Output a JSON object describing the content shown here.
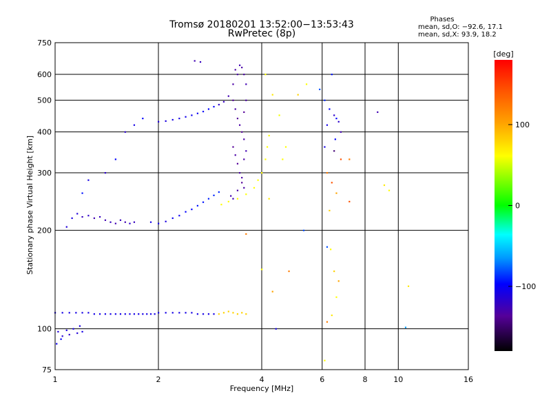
{
  "chart_data": {
    "type": "scatter",
    "title": "Tromsø 20180201 13:52:00−13:53:43",
    "subtitle": "RwPretec (8p)",
    "xlabel": "Frequency [MHz]",
    "ylabel": "Stationary phase Virtual Height [km]",
    "x_scale": "log",
    "y_scale": "log",
    "xlim": [
      1,
      16
    ],
    "ylim": [
      75,
      750
    ],
    "x_ticks": [
      1,
      2,
      4,
      6,
      8,
      10,
      16
    ],
    "x_tick_labels": [
      "1",
      "2",
      "4",
      "6",
      "8",
      "10",
      "16"
    ],
    "y_ticks": [
      75,
      100,
      200,
      300,
      400,
      500,
      600,
      750
    ],
    "y_tick_labels": [
      "75",
      "100",
      "200",
      "300",
      "400",
      "500",
      "600",
      "750"
    ],
    "grid": true,
    "phases_info": {
      "title": "Phases",
      "line_o": "mean, sd,O: −92.6, 17.1",
      "line_x": "mean, sd,X:  93.9, 18.2"
    },
    "colorbar": {
      "label": "[deg]",
      "range": [
        -180,
        180
      ],
      "ticks": [
        100,
        0,
        -100
      ],
      "tick_labels": [
        "100",
        "0",
        "−100"
      ]
    },
    "series": [
      {
        "points": [
          [
            1.0,
            112,
            -110
          ],
          [
            1.05,
            112,
            -110
          ],
          [
            1.1,
            112,
            -110
          ],
          [
            1.15,
            112,
            -110
          ],
          [
            1.2,
            112,
            -110
          ],
          [
            1.25,
            112,
            -110
          ],
          [
            1.3,
            111,
            -110
          ],
          [
            1.35,
            111,
            -110
          ],
          [
            1.4,
            111,
            -110
          ],
          [
            1.45,
            111,
            -110
          ],
          [
            1.5,
            111,
            -110
          ],
          [
            1.55,
            111,
            -110
          ],
          [
            1.6,
            111,
            -110
          ],
          [
            1.65,
            111,
            -110
          ],
          [
            1.7,
            111,
            -110
          ],
          [
            1.75,
            111,
            -110
          ],
          [
            1.8,
            111,
            -110
          ],
          [
            1.85,
            111,
            -110
          ],
          [
            1.9,
            111,
            -110
          ],
          [
            1.95,
            111,
            -110
          ],
          [
            2.0,
            112,
            -110
          ],
          [
            2.1,
            112,
            -110
          ],
          [
            2.2,
            112,
            -110
          ],
          [
            2.3,
            112,
            -110
          ],
          [
            2.4,
            112,
            -110
          ],
          [
            2.5,
            112,
            -110
          ],
          [
            2.6,
            111,
            -110
          ],
          [
            2.7,
            111,
            -110
          ],
          [
            2.8,
            111,
            -110
          ],
          [
            2.9,
            111,
            -110
          ],
          [
            1.02,
            98,
            -115
          ],
          [
            1.05,
            95,
            -118
          ],
          [
            1.08,
            99,
            -112
          ],
          [
            1.1,
            96,
            -120
          ],
          [
            1.13,
            100,
            -110
          ],
          [
            1.16,
            97,
            -115
          ],
          [
            1.18,
            102,
            -112
          ],
          [
            1.2,
            98,
            -110
          ],
          [
            1.01,
            90,
            -105
          ],
          [
            1.04,
            93,
            -100
          ],
          [
            1.08,
            205,
            -115
          ],
          [
            1.12,
            218,
            -112
          ],
          [
            1.16,
            225,
            -115
          ],
          [
            1.2,
            220,
            -125
          ],
          [
            1.25,
            222,
            -120
          ],
          [
            1.3,
            218,
            -130
          ],
          [
            1.35,
            220,
            -125
          ],
          [
            1.4,
            215,
            -130
          ],
          [
            1.45,
            212,
            -125
          ],
          [
            1.5,
            210,
            -130
          ],
          [
            1.55,
            215,
            -125
          ],
          [
            1.6,
            212,
            -130
          ],
          [
            1.65,
            210,
            -120
          ],
          [
            1.7,
            212,
            -125
          ],
          [
            1.9,
            212,
            -110
          ],
          [
            2.0,
            210,
            -110
          ],
          [
            2.1,
            213,
            -112
          ],
          [
            2.2,
            218,
            -105
          ],
          [
            2.3,
            222,
            -105
          ],
          [
            2.4,
            228,
            -100
          ],
          [
            2.5,
            232,
            -100
          ],
          [
            2.6,
            238,
            -95
          ],
          [
            2.7,
            244,
            -95
          ],
          [
            2.8,
            250,
            -92
          ],
          [
            2.9,
            256,
            -90
          ],
          [
            3.0,
            262,
            -90
          ],
          [
            3.05,
            240,
            100
          ],
          [
            3.2,
            245,
            100
          ],
          [
            3.4,
            250,
            100
          ],
          [
            3.6,
            258,
            100
          ],
          [
            3.8,
            270,
            100
          ],
          [
            3.9,
            285,
            100
          ],
          [
            4.0,
            300,
            100
          ],
          [
            4.1,
            330,
            100
          ],
          [
            4.15,
            360,
            100
          ],
          [
            4.2,
            390,
            100
          ],
          [
            3.0,
            111,
            120
          ],
          [
            3.1,
            112,
            120
          ],
          [
            3.2,
            113,
            120
          ],
          [
            3.3,
            112,
            120
          ],
          [
            3.4,
            111,
            120
          ],
          [
            3.5,
            112,
            120
          ],
          [
            3.6,
            111,
            120
          ],
          [
            2.0,
            430,
            -115
          ],
          [
            2.1,
            432,
            -112
          ],
          [
            2.2,
            436,
            -110
          ],
          [
            2.3,
            440,
            -110
          ],
          [
            2.4,
            445,
            -108
          ],
          [
            2.5,
            450,
            -105
          ],
          [
            2.6,
            456,
            -105
          ],
          [
            2.7,
            462,
            -102
          ],
          [
            2.8,
            470,
            -100
          ],
          [
            2.9,
            478,
            -100
          ],
          [
            3.0,
            485,
            -120
          ],
          [
            3.1,
            495,
            -125
          ],
          [
            3.2,
            515,
            -130
          ],
          [
            3.3,
            560,
            -135
          ],
          [
            3.35,
            620,
            -135
          ],
          [
            3.4,
            600,
            -135
          ],
          [
            3.45,
            640,
            -130
          ],
          [
            3.5,
            630,
            -135
          ],
          [
            3.3,
            500,
            -140
          ],
          [
            3.35,
            470,
            -135
          ],
          [
            3.4,
            440,
            -140
          ],
          [
            3.45,
            420,
            -135
          ],
          [
            3.5,
            400,
            -140
          ],
          [
            3.55,
            380,
            -135
          ],
          [
            3.3,
            360,
            -140
          ],
          [
            3.35,
            340,
            -135
          ],
          [
            3.4,
            320,
            -140
          ],
          [
            3.45,
            300,
            -135
          ],
          [
            3.5,
            280,
            -140
          ],
          [
            3.55,
            270,
            -135
          ],
          [
            3.25,
            255,
            -130
          ],
          [
            3.3,
            250,
            -130
          ],
          [
            3.4,
            265,
            -135
          ],
          [
            3.5,
            290,
            -135
          ],
          [
            3.55,
            330,
            -135
          ],
          [
            3.6,
            350,
            -130
          ],
          [
            3.55,
            460,
            -140
          ],
          [
            3.6,
            500,
            -135
          ],
          [
            3.6,
            560,
            -130
          ],
          [
            3.55,
            600,
            -135
          ],
          [
            1.6,
            400,
            -120
          ],
          [
            1.7,
            420,
            -110
          ],
          [
            1.8,
            440,
            -100
          ],
          [
            2.55,
            660,
            -130
          ],
          [
            2.65,
            655,
            -125
          ],
          [
            1.4,
            300,
            -120
          ],
          [
            1.25,
            285,
            -110
          ],
          [
            1.5,
            330,
            -100
          ],
          [
            1.2,
            260,
            -95
          ],
          [
            4.1,
            600,
            100
          ],
          [
            4.3,
            520,
            110
          ],
          [
            4.5,
            450,
            90
          ],
          [
            4.7,
            360,
            100
          ],
          [
            4.2,
            250,
            110
          ],
          [
            4.6,
            330,
            100
          ],
          [
            5.1,
            520,
            120
          ],
          [
            5.4,
            560,
            100
          ],
          [
            5.9,
            540,
            -80
          ],
          [
            6.1,
            500,
            -90
          ],
          [
            6.3,
            470,
            -100
          ],
          [
            6.5,
            450,
            -120
          ],
          [
            6.6,
            440,
            -100
          ],
          [
            6.7,
            430,
            -120
          ],
          [
            6.4,
            600,
            -95
          ],
          [
            6.2,
            420,
            -110
          ],
          [
            6.8,
            400,
            -130
          ],
          [
            6.55,
            380,
            -100
          ],
          [
            6.1,
            360,
            -110
          ],
          [
            6.5,
            350,
            -150
          ],
          [
            6.2,
            300,
            150
          ],
          [
            6.4,
            280,
            160
          ],
          [
            6.6,
            260,
            140
          ],
          [
            6.8,
            330,
            160
          ],
          [
            7.2,
            330,
            150
          ],
          [
            7.2,
            245,
            160
          ],
          [
            6.3,
            230,
            120
          ],
          [
            6.2,
            178,
            -80
          ],
          [
            6.35,
            175,
            100
          ],
          [
            6.5,
            150,
            120
          ],
          [
            6.7,
            140,
            140
          ],
          [
            6.6,
            125,
            100
          ],
          [
            6.4,
            110,
            110
          ],
          [
            6.2,
            105,
            150
          ],
          [
            6.1,
            80,
            100
          ],
          [
            8.7,
            460,
            -130
          ],
          [
            9.1,
            275,
            110
          ],
          [
            9.4,
            265,
            100
          ],
          [
            10.7,
            135,
            110
          ],
          [
            10.5,
            101,
            -60
          ],
          [
            5.3,
            200,
            -80
          ],
          [
            4.8,
            150,
            150
          ],
          [
            4.3,
            130,
            140
          ],
          [
            4.4,
            100,
            -110
          ],
          [
            3.6,
            195,
            150
          ],
          [
            4.0,
            152,
            100
          ]
        ]
      }
    ]
  }
}
